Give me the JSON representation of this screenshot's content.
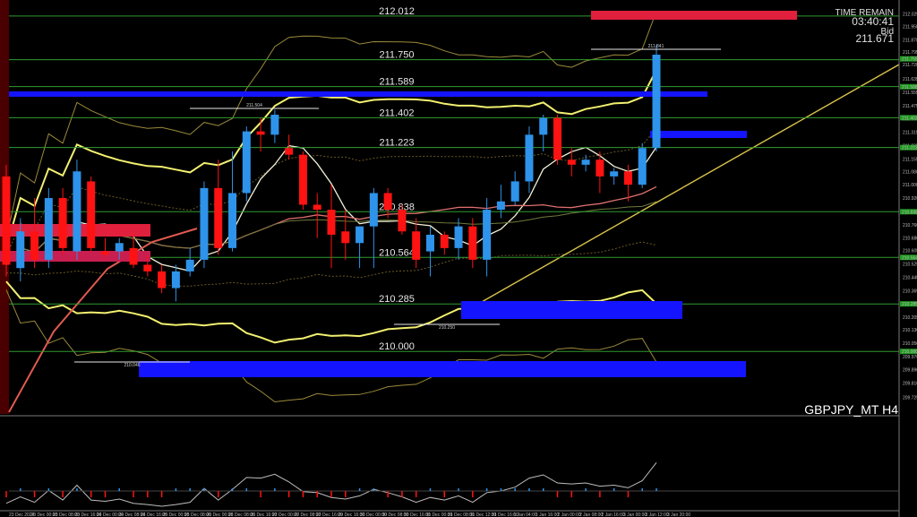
{
  "header": {
    "time_remain_label": "TIME REMAIN",
    "time_remain_value": "03:40:41",
    "bid_label": "Bid",
    "bid_value": "211.671"
  },
  "symbol_label": "GBPJPY_MT H4",
  "colors": {
    "bull": "#2e93ea",
    "bear": "#ff1212",
    "level_line": "#2f9b2f",
    "bollinger_mid": "#f2f070",
    "zone_blue": "#1414ff",
    "zone_red": "#e0203c",
    "trendline": "#d8c24a"
  },
  "chart_data": {
    "type": "candlestick",
    "symbol": "GBPJPY_MT",
    "timeframe": "H4",
    "ylim": [
      209.625,
      212.108
    ],
    "y_ticks": [
      212.1,
      212.025,
      211.95,
      211.87,
      211.795,
      211.72,
      211.635,
      211.555,
      211.475,
      211.395,
      211.315,
      211.235,
      211.155,
      211.08,
      211.0,
      210.92,
      210.84,
      210.76,
      210.68,
      210.605,
      210.525,
      210.445,
      210.365,
      210.285,
      210.205,
      210.13,
      210.05,
      209.97,
      209.89,
      209.81,
      209.725
    ],
    "price_labels": [
      {
        "highlight": true,
        "value": "211.755"
      },
      {
        "highlight": true,
        "value": "211.588"
      },
      {
        "highlight": true,
        "value": "211.402"
      },
      {
        "highlight": true,
        "value": "211.223"
      },
      {
        "highlight": true,
        "value": "210.838"
      },
      {
        "highlight": true,
        "value": "210.564"
      },
      {
        "highlight": true,
        "value": "210.285"
      },
      {
        "highlight": true,
        "value": "210.000"
      }
    ],
    "levels": [
      "212.012",
      "211.750",
      "211.589",
      "211.402",
      "211.223",
      "210.838",
      "210.564",
      "210.285",
      "210.000"
    ],
    "annotations": [
      "211.841",
      "211.504",
      "210.250",
      "210.046"
    ],
    "x_ticks": [
      "23 Dec 2024",
      "23 Dec 00:00",
      "23 Dec 08:00",
      "23 Dec 16:00",
      "24 Dec 00:00",
      "24 Dec 08:00",
      "24 Dec 16:00",
      "25 Dec 00:00",
      "25 Dec 08:00",
      "26 Dec 00:00",
      "26 Dec 08:00",
      "26 Dec 16:00",
      "27 Dec 00:00",
      "27 Dec 08:00",
      "27 Dec 16:00",
      "29 Dec 16:00",
      "30 Dec 00:00",
      "30 Dec 08:00",
      "30 Dec 16:00",
      "31 Dec 00:00",
      "31 Dec 08:00",
      "31 Dec 12:00",
      "31 Dec 16:00",
      "1 Jan 04:00",
      "1 Jan 16:00",
      "2 Jan 00:00",
      "2 Jan 08:00",
      "2 Jan 16:00",
      "3 Jan 00:00",
      "3 Jan 12:00",
      "3 Jan 20:00"
    ],
    "candles": [
      {
        "o": 211.05,
        "h": 211.12,
        "l": 210.45,
        "c": 210.52
      },
      {
        "o": 210.5,
        "h": 210.8,
        "l": 210.42,
        "c": 210.72
      },
      {
        "o": 210.72,
        "h": 210.92,
        "l": 210.5,
        "c": 210.55
      },
      {
        "o": 210.55,
        "h": 210.98,
        "l": 210.5,
        "c": 210.92
      },
      {
        "o": 210.92,
        "h": 210.98,
        "l": 210.58,
        "c": 210.62
      },
      {
        "o": 210.6,
        "h": 211.15,
        "l": 210.55,
        "c": 211.08
      },
      {
        "o": 211.02,
        "h": 211.05,
        "l": 210.6,
        "c": 210.62
      },
      {
        "o": 210.6,
        "h": 210.68,
        "l": 210.55,
        "c": 210.58
      },
      {
        "o": 210.6,
        "h": 210.68,
        "l": 210.55,
        "c": 210.65
      },
      {
        "o": 210.62,
        "h": 210.7,
        "l": 210.5,
        "c": 210.52
      },
      {
        "o": 210.52,
        "h": 210.58,
        "l": 210.45,
        "c": 210.48
      },
      {
        "o": 210.48,
        "h": 210.52,
        "l": 210.35,
        "c": 210.38
      },
      {
        "o": 210.38,
        "h": 210.52,
        "l": 210.3,
        "c": 210.48
      },
      {
        "o": 210.48,
        "h": 210.62,
        "l": 210.45,
        "c": 210.55
      },
      {
        "o": 210.55,
        "h": 211.02,
        "l": 210.5,
        "c": 210.98
      },
      {
        "o": 210.98,
        "h": 211.15,
        "l": 210.58,
        "c": 210.62
      },
      {
        "o": 210.62,
        "h": 211.2,
        "l": 210.6,
        "c": 210.95
      },
      {
        "o": 210.95,
        "h": 211.35,
        "l": 210.9,
        "c": 211.32
      },
      {
        "o": 211.32,
        "h": 211.4,
        "l": 211.2,
        "c": 211.3
      },
      {
        "o": 211.3,
        "h": 211.45,
        "l": 211.25,
        "c": 211.42
      },
      {
        "o": 211.22,
        "h": 211.3,
        "l": 211.15,
        "c": 211.18
      },
      {
        "o": 211.18,
        "h": 211.2,
        "l": 210.85,
        "c": 210.88
      },
      {
        "o": 210.88,
        "h": 210.95,
        "l": 210.68,
        "c": 210.85
      },
      {
        "o": 210.85,
        "h": 211.0,
        "l": 210.5,
        "c": 210.7
      },
      {
        "o": 210.72,
        "h": 210.85,
        "l": 210.55,
        "c": 210.65
      },
      {
        "o": 210.65,
        "h": 210.75,
        "l": 210.5,
        "c": 210.75
      },
      {
        "o": 210.75,
        "h": 210.98,
        "l": 210.5,
        "c": 210.95
      },
      {
        "o": 210.95,
        "h": 210.98,
        "l": 210.8,
        "c": 210.85
      },
      {
        "o": 210.85,
        "h": 210.88,
        "l": 210.7,
        "c": 210.72
      },
      {
        "o": 210.72,
        "h": 210.8,
        "l": 210.5,
        "c": 210.55
      },
      {
        "o": 210.6,
        "h": 210.75,
        "l": 210.45,
        "c": 210.7
      },
      {
        "o": 210.7,
        "h": 210.72,
        "l": 210.58,
        "c": 210.62
      },
      {
        "o": 210.62,
        "h": 210.8,
        "l": 210.55,
        "c": 210.75
      },
      {
        "o": 210.75,
        "h": 210.8,
        "l": 210.5,
        "c": 210.55
      },
      {
        "o": 210.55,
        "h": 210.92,
        "l": 210.45,
        "c": 210.85
      },
      {
        "o": 210.85,
        "h": 211.0,
        "l": 210.8,
        "c": 210.9
      },
      {
        "o": 210.9,
        "h": 211.08,
        "l": 210.88,
        "c": 211.02
      },
      {
        "o": 211.02,
        "h": 211.35,
        "l": 210.95,
        "c": 211.3
      },
      {
        "o": 211.3,
        "h": 211.42,
        "l": 211.2,
        "c": 211.4
      },
      {
        "o": 211.4,
        "h": 211.42,
        "l": 211.12,
        "c": 211.15
      },
      {
        "o": 211.15,
        "h": 211.22,
        "l": 211.05,
        "c": 211.12
      },
      {
        "o": 211.12,
        "h": 211.18,
        "l": 211.08,
        "c": 211.15
      },
      {
        "o": 211.15,
        "h": 211.2,
        "l": 210.95,
        "c": 211.05
      },
      {
        "o": 211.05,
        "h": 211.1,
        "l": 211.0,
        "c": 211.08
      },
      {
        "o": 211.08,
        "h": 211.12,
        "l": 210.9,
        "c": 211.0
      },
      {
        "o": 211.0,
        "h": 211.25,
        "l": 210.98,
        "c": 211.22
      },
      {
        "o": 211.22,
        "h": 211.84,
        "l": 211.2,
        "c": 211.78
      }
    ]
  }
}
